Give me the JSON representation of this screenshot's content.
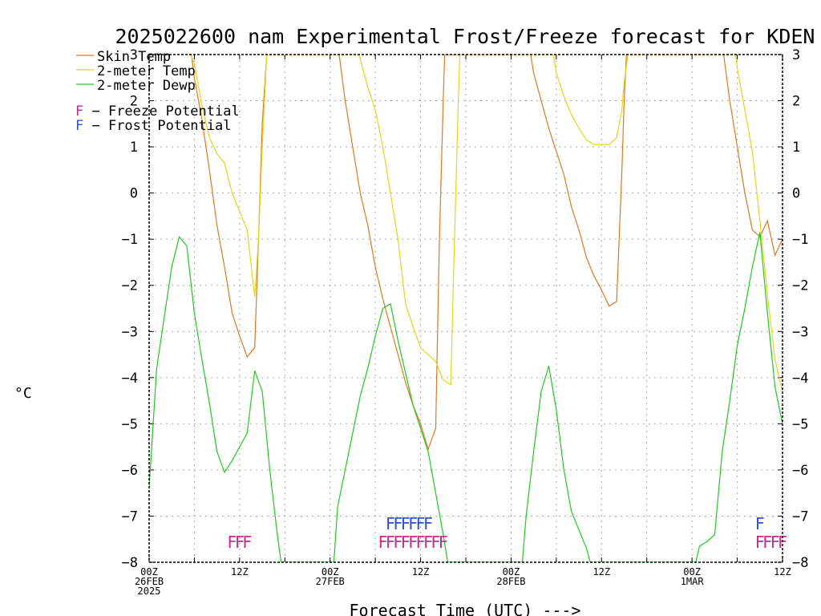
{
  "chart_data": {
    "type": "line",
    "title": "2025022600 nam Experimental Frost/Freeze forecast for KDEN",
    "xlabel": "Forecast Time (UTC) --->",
    "ylabel": "°C",
    "ylim": [
      -8,
      3
    ],
    "xlim_hours": [
      0,
      84
    ],
    "yticks": [
      "3",
      "2",
      "1",
      "0",
      "−1",
      "−2",
      "−3",
      "−4",
      "−5",
      "−6",
      "−7",
      "−8"
    ],
    "x_ticks": [
      {
        "hour": 0,
        "l1": "00Z",
        "l2": "26FEB",
        "l3": "2025"
      },
      {
        "hour": 12,
        "l1": "12Z",
        "l2": "",
        "l3": ""
      },
      {
        "hour": 24,
        "l1": "00Z",
        "l2": "27FEB",
        "l3": ""
      },
      {
        "hour": 36,
        "l1": "12Z",
        "l2": "",
        "l3": ""
      },
      {
        "hour": 48,
        "l1": "00Z",
        "l2": "28FEB",
        "l3": ""
      },
      {
        "hour": 60,
        "l1": "12Z",
        "l2": "",
        "l3": ""
      },
      {
        "hour": 72,
        "l1": "00Z",
        "l2": "1MAR",
        "l3": ""
      },
      {
        "hour": 84,
        "l1": "12Z",
        "l2": "",
        "l3": ""
      }
    ],
    "series": [
      {
        "name": "Skin Temp",
        "color": "#e07820",
        "points": [
          [
            5.6,
            3.0
          ],
          [
            6,
            2.5
          ],
          [
            7,
            1.6
          ],
          [
            8,
            0.5
          ],
          [
            9,
            -0.7
          ],
          [
            10,
            -1.6
          ],
          [
            11,
            -2.6
          ],
          [
            12,
            -3.1
          ],
          [
            13,
            -3.55
          ],
          [
            14,
            -3.35
          ],
          [
            14.5,
            -1.0
          ],
          [
            15,
            1.5
          ],
          [
            15.6,
            3.0
          ],
          [
            25.2,
            3.0
          ],
          [
            26,
            2.0
          ],
          [
            27,
            1.0
          ],
          [
            28,
            0.0
          ],
          [
            29,
            -0.7
          ],
          [
            30,
            -1.6
          ],
          [
            31,
            -2.3
          ],
          [
            32,
            -2.9
          ],
          [
            33,
            -3.5
          ],
          [
            34,
            -4.1
          ],
          [
            35,
            -4.6
          ],
          [
            36,
            -5.0
          ],
          [
            37,
            -5.55
          ],
          [
            38,
            -5.1
          ],
          [
            38.5,
            -1.0
          ],
          [
            39,
            2.0
          ],
          [
            39.2,
            3.0
          ],
          [
            50.6,
            3.0
          ],
          [
            51,
            2.6
          ],
          [
            52,
            2.0
          ],
          [
            53,
            1.4
          ],
          [
            54,
            0.9
          ],
          [
            55,
            0.4
          ],
          [
            56,
            -0.3
          ],
          [
            57,
            -0.8
          ],
          [
            58,
            -1.4
          ],
          [
            59,
            -1.8
          ],
          [
            60,
            -2.1
          ],
          [
            61,
            -2.45
          ],
          [
            62,
            -2.35
          ],
          [
            62.7,
            0.5
          ],
          [
            63,
            2.0
          ],
          [
            63.3,
            3.0
          ],
          [
            76.2,
            3.0
          ],
          [
            77,
            2.0
          ],
          [
            78,
            1.0
          ],
          [
            79,
            0.0
          ],
          [
            80,
            -0.8
          ],
          [
            81,
            -0.95
          ],
          [
            82,
            -0.6
          ],
          [
            83,
            -1.35
          ],
          [
            84,
            -1.0
          ]
        ]
      },
      {
        "name": "2-meter Temp",
        "color": "#e0d818",
        "points": [
          [
            5.5,
            3.0
          ],
          [
            6,
            2.8
          ],
          [
            7,
            1.9
          ],
          [
            8,
            1.2
          ],
          [
            9,
            0.85
          ],
          [
            10,
            0.65
          ],
          [
            11,
            0.0
          ],
          [
            12,
            -0.4
          ],
          [
            13,
            -0.8
          ],
          [
            14,
            -2.25
          ],
          [
            14.5,
            -1.0
          ],
          [
            15,
            1.0
          ],
          [
            15.6,
            3.0
          ],
          [
            27.8,
            3.0
          ],
          [
            28,
            2.9
          ],
          [
            29,
            2.3
          ],
          [
            30,
            1.8
          ],
          [
            31,
            1.0
          ],
          [
            32,
            0.0
          ],
          [
            33,
            -1.0
          ],
          [
            34,
            -2.4
          ],
          [
            35,
            -2.9
          ],
          [
            36,
            -3.35
          ],
          [
            37,
            -3.5
          ],
          [
            38,
            -3.65
          ],
          [
            39,
            -4.05
          ],
          [
            40,
            -4.15
          ],
          [
            40.5,
            -1.0
          ],
          [
            41,
            2.0
          ],
          [
            41.2,
            3.0
          ],
          [
            53.6,
            3.0
          ],
          [
            54,
            2.6
          ],
          [
            55,
            2.1
          ],
          [
            56,
            1.7
          ],
          [
            57,
            1.4
          ],
          [
            58,
            1.15
          ],
          [
            59,
            1.05
          ],
          [
            60,
            1.05
          ],
          [
            61,
            1.05
          ],
          [
            62,
            1.2
          ],
          [
            62.7,
            1.8
          ],
          [
            63,
            2.4
          ],
          [
            63.5,
            3.0
          ],
          [
            77.8,
            3.0
          ],
          [
            78,
            2.7
          ],
          [
            79,
            1.8
          ],
          [
            80,
            0.9
          ],
          [
            81,
            -0.6
          ],
          [
            82,
            -2.2
          ],
          [
            83,
            -3.6
          ],
          [
            84,
            -4.3
          ]
        ]
      },
      {
        "name": "2-meter Dewp",
        "color": "#20c820",
        "points": [
          [
            0,
            -6.4
          ],
          [
            1,
            -3.8
          ],
          [
            2,
            -2.7
          ],
          [
            3,
            -1.6
          ],
          [
            4,
            -0.95
          ],
          [
            5,
            -1.15
          ],
          [
            6,
            -2.6
          ],
          [
            7,
            -3.6
          ],
          [
            8,
            -4.55
          ],
          [
            9,
            -5.6
          ],
          [
            10,
            -6.05
          ],
          [
            11,
            -5.8
          ],
          [
            12,
            -5.5
          ],
          [
            13,
            -5.2
          ],
          [
            14,
            -3.85
          ],
          [
            15,
            -4.3
          ],
          [
            16,
            -6.0
          ],
          [
            17,
            -7.4
          ],
          [
            17.5,
            -8.0
          ],
          [
            24.5,
            -8.0
          ],
          [
            25,
            -6.8
          ],
          [
            26,
            -6.0
          ],
          [
            27,
            -5.2
          ],
          [
            28,
            -4.4
          ],
          [
            29,
            -3.8
          ],
          [
            30,
            -3.1
          ],
          [
            31,
            -2.5
          ],
          [
            32,
            -2.4
          ],
          [
            33,
            -3.2
          ],
          [
            34,
            -3.9
          ],
          [
            35,
            -4.6
          ],
          [
            36,
            -5.1
          ],
          [
            37,
            -5.6
          ],
          [
            38,
            -6.5
          ],
          [
            39,
            -7.4
          ],
          [
            39.6,
            -8.0
          ],
          [
            49.5,
            -8.0
          ],
          [
            50,
            -7.0
          ],
          [
            51,
            -5.6
          ],
          [
            52,
            -4.3
          ],
          [
            53,
            -3.75
          ],
          [
            54,
            -4.7
          ],
          [
            55,
            -6.0
          ],
          [
            56,
            -6.9
          ],
          [
            57,
            -7.3
          ],
          [
            58,
            -7.7
          ],
          [
            58.5,
            -8.0
          ],
          [
            72.5,
            -8.0
          ],
          [
            73,
            -7.65
          ],
          [
            74,
            -7.55
          ],
          [
            75,
            -7.4
          ],
          [
            76,
            -5.6
          ],
          [
            77,
            -4.5
          ],
          [
            78,
            -3.3
          ],
          [
            79,
            -2.5
          ],
          [
            80,
            -1.6
          ],
          [
            81,
            -0.85
          ],
          [
            82,
            -2.6
          ],
          [
            83,
            -4.2
          ],
          [
            84,
            -5.0
          ]
        ]
      }
    ],
    "annotations": {
      "freeze": {
        "label": "F − Freeze Potential",
        "color": "#d02888",
        "y": -7.55,
        "hours": [
          11,
          12,
          13,
          31,
          32,
          33,
          34,
          35,
          36,
          37,
          38,
          39,
          81,
          82,
          83,
          84
        ],
        "glyph": "F"
      },
      "frost": {
        "label": "F − Frost Potential",
        "color": "#3050d0",
        "y": -7.15,
        "hours": [
          32,
          33,
          34,
          35,
          36,
          37,
          81
        ],
        "glyph": "F"
      }
    }
  }
}
